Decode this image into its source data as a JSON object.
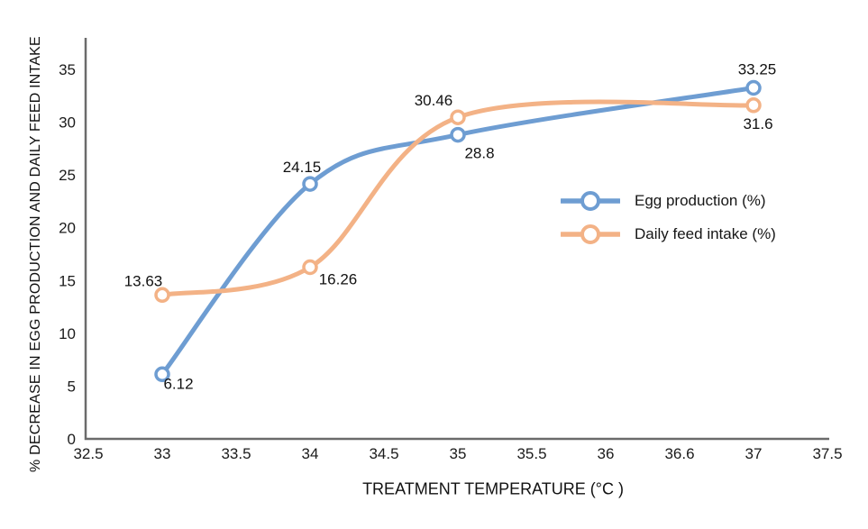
{
  "page": {
    "background": "#ffffff"
  },
  "chart": {
    "axis_color": "#6b6b6b",
    "text_color": "#111111"
  },
  "chart_data": {
    "type": "line",
    "title": "",
    "xlabel": "TREATMENT TEMPERATURE (°C )",
    "ylabel": "% DECREASE IN EGG PRODUCTION AND DAILY FEED INTAKE",
    "x": [
      33,
      34,
      35,
      37
    ],
    "x_tick_labels": [
      "32.5",
      "33",
      "33.5",
      "34",
      "34.5",
      "35",
      "35.5",
      "36",
      "36.6",
      "37",
      "37.5"
    ],
    "xlim": [
      32.5,
      37.5
    ],
    "y_ticks": [
      0,
      5,
      10,
      15,
      20,
      25,
      30,
      35
    ],
    "y_tick_labels": [
      "0",
      "5",
      "10",
      "15",
      "20",
      "25",
      "30",
      "35"
    ],
    "ylim": [
      0,
      38
    ],
    "grid": false,
    "legend_position": "middle-right",
    "marker_style": "open-circle",
    "line_smoothing": true,
    "series": [
      {
        "name": "Egg production (%)",
        "color": "#6E9DD2",
        "values": [
          6.12,
          24.15,
          28.8,
          33.25
        ],
        "point_labels": [
          "6.12",
          "24.15",
          "28.8",
          "33.25"
        ],
        "label_offsets": [
          [
            18,
            16
          ],
          [
            -9,
            -13
          ],
          [
            24,
            26
          ],
          [
            4,
            -15
          ]
        ]
      },
      {
        "name": "Daily feed intake (%)",
        "color": "#F3B286",
        "values": [
          13.63,
          16.26,
          30.46,
          31.6
        ],
        "point_labels": [
          "13.63",
          "16.26",
          "30.46",
          "31.6"
        ],
        "label_offsets": [
          [
            -21,
            -10
          ],
          [
            31,
            19
          ],
          [
            -27,
            -13
          ],
          [
            5,
            26
          ]
        ]
      }
    ]
  }
}
